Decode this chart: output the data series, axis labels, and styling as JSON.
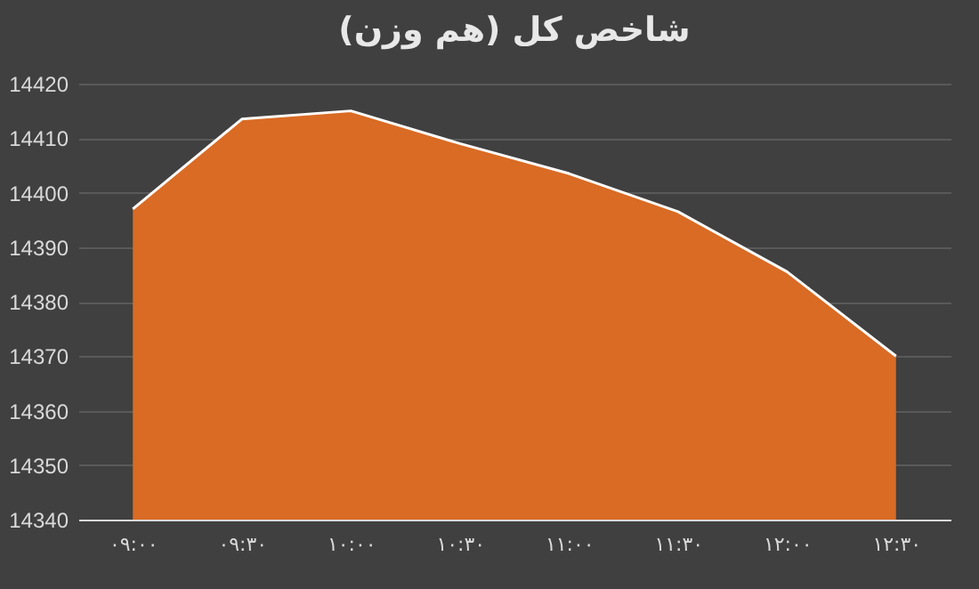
{
  "chart_data": {
    "type": "area",
    "title": "شاخص کل (هم وزن)",
    "categories": [
      "۰۹:۰۰",
      "۰۹:۳۰",
      "۱۰:۰۰",
      "۱۰:۳۰",
      "۱۱:۰۰",
      "۱۱:۳۰",
      "۱۲:۰۰",
      "۱۲:۳۰"
    ],
    "series": [
      {
        "color": "#d96b24",
        "values": [
          14397,
          14413.5,
          14415,
          14409,
          14403.5,
          14396.5,
          14385.5,
          14370
        ]
      }
    ],
    "ylim": [
      14340,
      14420
    ],
    "yticks": [
      14340,
      14350,
      14360,
      14370,
      14380,
      14390,
      14400,
      14410,
      14420
    ],
    "grid": "y"
  }
}
